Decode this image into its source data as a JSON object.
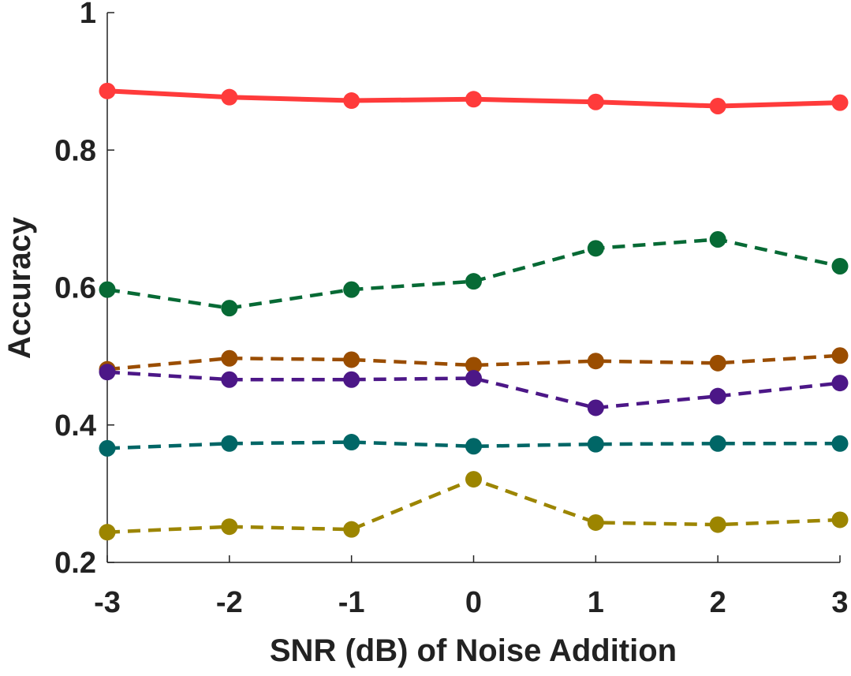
{
  "chart_data": {
    "type": "line",
    "title": "",
    "xlabel": "SNR (dB) of Noise Addition",
    "ylabel": "Accuracy",
    "x": [
      -3,
      -2,
      -1,
      0,
      1,
      2,
      3
    ],
    "x_tick_labels": [
      "-3",
      "-2",
      "-1",
      "0",
      "1",
      "2",
      "3"
    ],
    "y_ticks": [
      0.2,
      0.4,
      0.6,
      0.8,
      1
    ],
    "y_tick_labels": [
      "0.2",
      "0.4",
      "0.6",
      "0.8",
      "1"
    ],
    "xlim": [
      -3,
      3
    ],
    "ylim": [
      0.2,
      1.0
    ],
    "grid": false,
    "series": [
      {
        "name": "red-solid",
        "color": "#ff3b3b",
        "style": "solid",
        "values": [
          0.886,
          0.877,
          0.872,
          0.874,
          0.87,
          0.864,
          0.869
        ]
      },
      {
        "name": "green-dashed",
        "color": "#076a35",
        "style": "dashed",
        "values": [
          0.597,
          0.57,
          0.597,
          0.609,
          0.657,
          0.67,
          0.631
        ]
      },
      {
        "name": "orange-dashed",
        "color": "#9a4d00",
        "style": "dashed",
        "values": [
          0.481,
          0.497,
          0.495,
          0.487,
          0.493,
          0.49,
          0.501
        ]
      },
      {
        "name": "purple-dashed",
        "color": "#4c1787",
        "style": "dashed",
        "values": [
          0.477,
          0.466,
          0.466,
          0.468,
          0.425,
          0.442,
          0.461
        ]
      },
      {
        "name": "teal-dashed",
        "color": "#006666",
        "style": "dashed",
        "values": [
          0.366,
          0.373,
          0.375,
          0.369,
          0.372,
          0.373,
          0.373
        ]
      },
      {
        "name": "olive-dashed",
        "color": "#9c8500",
        "style": "dashed",
        "values": [
          0.244,
          0.252,
          0.248,
          0.321,
          0.258,
          0.255,
          0.262
        ]
      }
    ]
  }
}
